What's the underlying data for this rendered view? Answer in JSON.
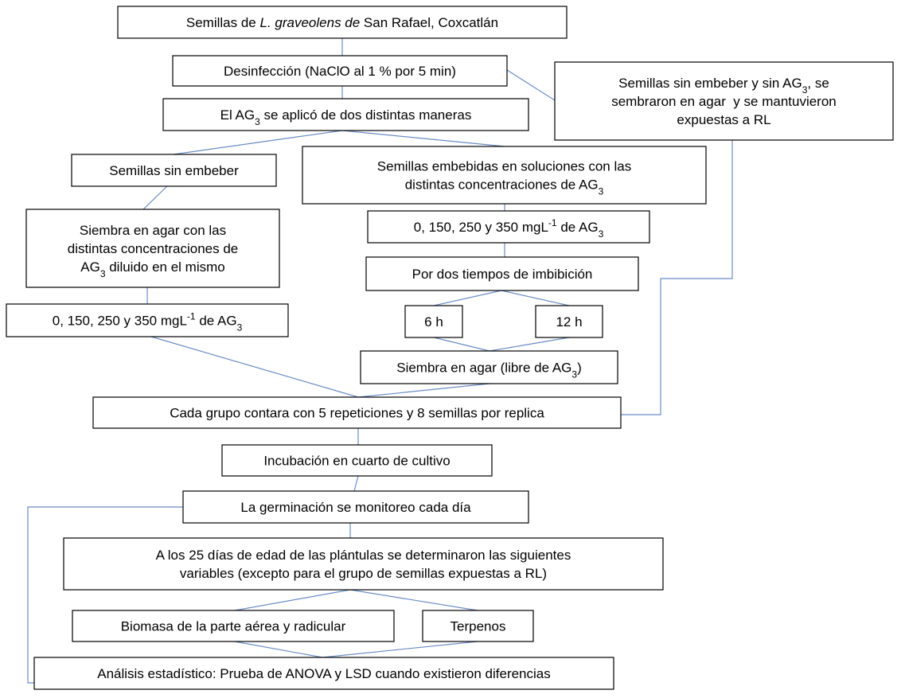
{
  "nodes": [
    {
      "lines": [
        [
          "Semillas de ",
          {
            "i": "L. graveolens de"
          },
          " San Rafael, Coxcatlán"
        ]
      ]
    },
    {
      "lines": [
        [
          "Desinfección (NaClO al 1 % por 5 min)"
        ]
      ]
    },
    {
      "lines": [
        [
          "El AG",
          {
            "sub": "3"
          },
          " se aplicó de dos distintas maneras"
        ]
      ]
    },
    {
      "lines": [
        [
          "Semillas sin embeber y sin AG",
          {
            "sub": "3"
          },
          ", se"
        ],
        [
          "sembraron en agar  y se mantuvieron"
        ],
        [
          "expuestas a RL"
        ]
      ]
    },
    {
      "lines": [
        [
          "Semillas sin embeber"
        ]
      ]
    },
    {
      "lines": [
        [
          "Semillas embebidas en soluciones con las"
        ],
        [
          "distintas concentraciones de AG",
          {
            "sub": "3"
          }
        ]
      ]
    },
    {
      "lines": [
        [
          "Siembra en agar con las"
        ],
        [
          "distintas concentraciones de"
        ],
        [
          "AG",
          {
            "sub": "3"
          },
          " diluido en el mismo"
        ]
      ]
    },
    {
      "lines": [
        [
          "0, 150, 250 y 350 mgL",
          {
            "sup": "-1"
          },
          " de AG",
          {
            "sub": "3"
          }
        ]
      ]
    },
    {
      "lines": [
        [
          "Por dos tiempos de imbibición"
        ]
      ]
    },
    {
      "lines": [
        [
          "0, 150, 250 y 350 mgL",
          {
            "sup": "-1"
          },
          " de AG",
          {
            "sub": "3"
          }
        ]
      ]
    },
    {
      "lines": [
        [
          "6 h"
        ]
      ]
    },
    {
      "lines": [
        [
          "12 h"
        ]
      ]
    },
    {
      "lines": [
        [
          "Siembra en agar (libre de AG",
          {
            "sub": "3"
          },
          ")"
        ]
      ]
    },
    {
      "lines": [
        [
          "Cada grupo contara con 5 repeticiones y 8 semillas por replica"
        ]
      ]
    },
    {
      "lines": [
        [
          "Incubación en cuarto de cultivo"
        ]
      ]
    },
    {
      "lines": [
        [
          "La germinación se monitoreo cada día"
        ]
      ]
    },
    {
      "lines": [
        [
          "A los 25 días de edad de las plántulas se determinaron las siguientes"
        ],
        [
          "variables (excepto para el grupo de semillas expuestas a RL)"
        ]
      ]
    },
    {
      "lines": [
        [
          "Biomasa de la parte aérea y radicular"
        ]
      ]
    },
    {
      "lines": [
        [
          "Terpenos"
        ]
      ]
    },
    {
      "lines": [
        [
          "Análisis estadístico: Prueba de ANOVA y LSD cuando existieron diferencias"
        ]
      ]
    }
  ]
}
